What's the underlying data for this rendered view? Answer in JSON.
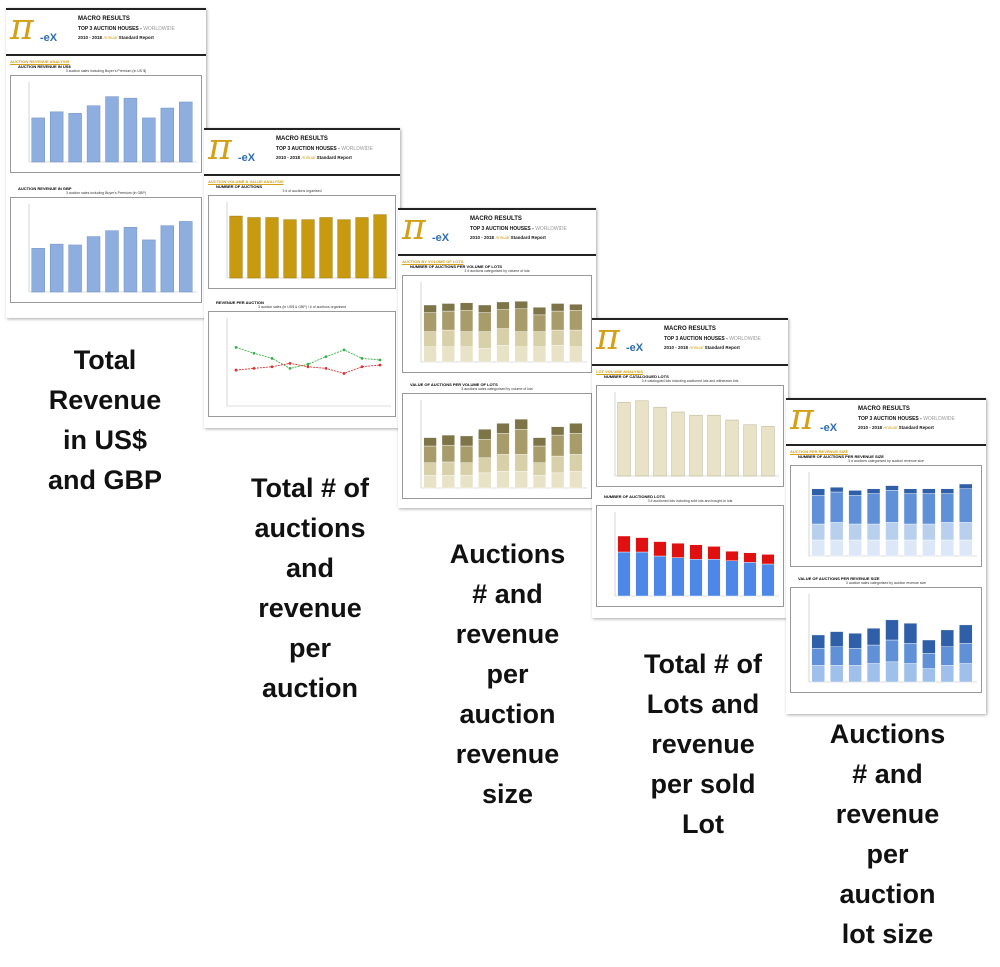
{
  "header": {
    "title": "MACRO RESULTS",
    "line2_main": "TOP 3 AUCTION HOUSES -",
    "line2_region": "WORLDWIDE",
    "line3_years": "2010 - 2018",
    "line3_annual": "Annual",
    "line3_report": "Standard Report",
    "logo_symbol": "π",
    "logo_suffix": "-eX"
  },
  "pages": [
    {
      "section": "AUCTION REVENUE ANALYSIS",
      "blocks": [
        {
          "title": "AUCTION REVENUE IN US$",
          "sub": "3 auction sales including Buyer's Premium (in US $)"
        },
        {
          "title": "AUCTION REVENUE IN GBP",
          "sub": "3 auction sales including Buyer's Premium (in GBP)"
        }
      ],
      "caption": [
        "Total",
        "Revenue",
        "in US$",
        "and GBP"
      ]
    },
    {
      "section": "AUCTION VOLUME & VALUE ANALYSIS",
      "blocks": [
        {
          "title": "NUMBER OF AUCTIONS",
          "sub": "3 # of auctions organised"
        },
        {
          "title": "REVENUE PER AUCTION",
          "sub": "3 auction sales (in US$ & GBP) / # of auctions organised"
        }
      ],
      "caption": [
        "Total # of",
        "auctions",
        "and",
        "revenue",
        "per",
        "auction"
      ]
    },
    {
      "section": "AUCTION BY VOLUME OF LOTS",
      "blocks": [
        {
          "title": "NUMBER OF AUCTIONS PER VOLUME OF LOTS",
          "sub": "3 # auctions categorised by volume of lots"
        },
        {
          "title": "VALUE OF AUCTIONS PER VOLUME OF LOTS",
          "sub": "3 auctions sales categorised by volume of lots"
        }
      ],
      "caption": [
        "Auctions",
        "# and",
        "revenue",
        "per",
        "auction",
        "revenue",
        "size"
      ]
    },
    {
      "section": "LOT VOLUME ANALYSIS",
      "blocks": [
        {
          "title": "NUMBER OF CATALOGUED LOTS",
          "sub": "3 # catalogued lots including auctioned lots and withdrawn lots"
        },
        {
          "title": "NUMBER OF AUCTIONED LOTS",
          "sub": "3 # auctioned lots including sold lots and bought-in lots"
        }
      ],
      "caption": [
        "Total # of",
        "Lots and",
        "revenue",
        "per sold",
        "Lot"
      ]
    },
    {
      "section": "AUCTION PER REVENUE SIZE",
      "blocks": [
        {
          "title": "NUMBER OF AUCTIONS PER REVENUE SIZE",
          "sub": "3 # auctions categorised by auction revenue size"
        },
        {
          "title": "VALUE OF AUCTIONS PER REVENUE SIZE",
          "sub": "3 auction sales categorised by auction revenue size"
        }
      ],
      "caption": [
        "Auctions",
        "# and",
        "revenue",
        "per",
        "auction",
        "lot size"
      ]
    }
  ],
  "colors": {
    "blue_bar": "#8eaee0",
    "gold_bar": "#c89a10",
    "olive_dark": "#7d7448",
    "olive_mid": "#a89d6a",
    "olive_light": "#d8d0a8",
    "beige": "#e8e2c6",
    "red": "#e01010",
    "blue_mid": "#4d88e8",
    "navy": "#2f5fa8",
    "light_blue": "#b8d0ee",
    "green_line": "#3bb04a",
    "red_line": "#e03030"
  },
  "icons": [
    "pi-logo-icon"
  ]
}
